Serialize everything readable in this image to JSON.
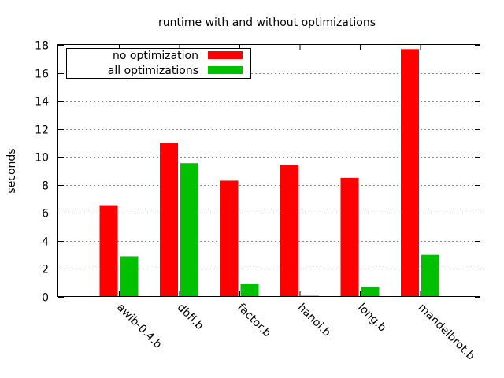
{
  "chart_data": {
    "type": "bar",
    "title": "runtime with and without optimizations",
    "xlabel": "",
    "ylabel": "seconds",
    "ylim": [
      0,
      18
    ],
    "yticks": [
      0,
      2,
      4,
      6,
      8,
      10,
      12,
      14,
      16,
      18
    ],
    "grid": true,
    "legend_position": "top-left",
    "categories": [
      "awib-0.4.b",
      "dbfi.b",
      "factor.b",
      "hanoi.b",
      "long.b",
      "mandelbrot.b"
    ],
    "series": [
      {
        "name": "no optimization",
        "color": "#ff0000",
        "values": [
          6.55,
          11.0,
          8.3,
          9.45,
          8.5,
          17.7
        ]
      },
      {
        "name": "all optimizations",
        "color": "#00c000",
        "values": [
          2.9,
          9.55,
          0.95,
          0.08,
          0.7,
          3.0
        ]
      }
    ]
  }
}
